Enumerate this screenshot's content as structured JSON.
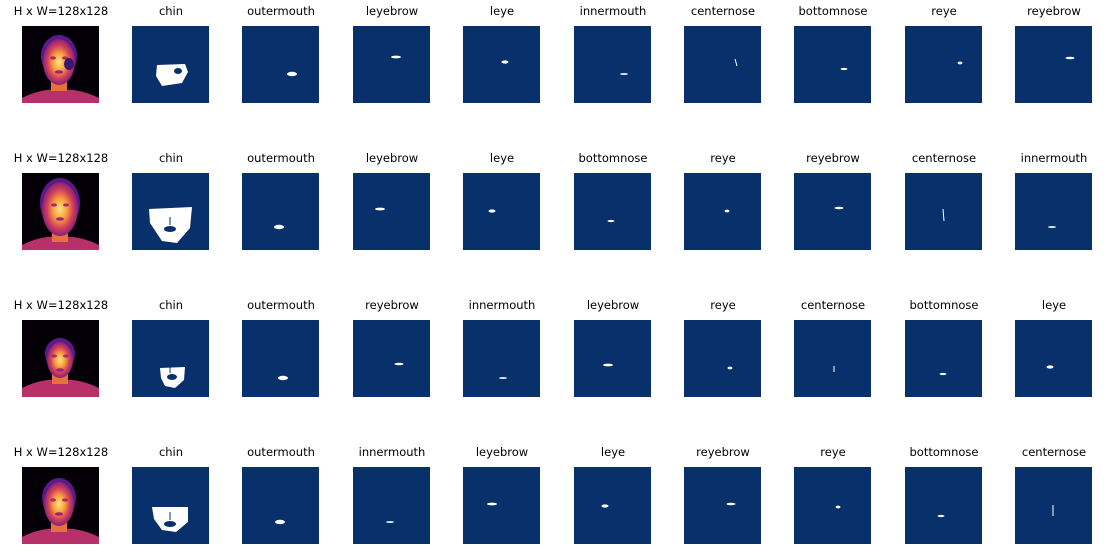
{
  "figure": {
    "colors": {
      "mask_background": "#08306b",
      "mask_foreground": "#ffffff"
    },
    "rows": [
      {
        "titles": [
          "H x W=128x128",
          "chin",
          "outermouth",
          "leyebrow",
          "leye",
          "innermouth",
          "centernose",
          "bottomnose",
          "reye",
          "reyebrow"
        ]
      },
      {
        "titles": [
          "H x W=128x128",
          "chin",
          "outermouth",
          "leyebrow",
          "leye",
          "bottomnose",
          "reye",
          "reyebrow",
          "centernose",
          "innermouth"
        ]
      },
      {
        "titles": [
          "H x W=128x128",
          "chin",
          "outermouth",
          "reyebrow",
          "innermouth",
          "leyebrow",
          "reye",
          "centernose",
          "bottomnose",
          "leye"
        ]
      },
      {
        "titles": [
          "H x W=128x128",
          "chin",
          "outermouth",
          "innermouth",
          "leyebrow",
          "leye",
          "reyebrow",
          "reye",
          "bottomnose",
          "centernose"
        ]
      }
    ]
  }
}
